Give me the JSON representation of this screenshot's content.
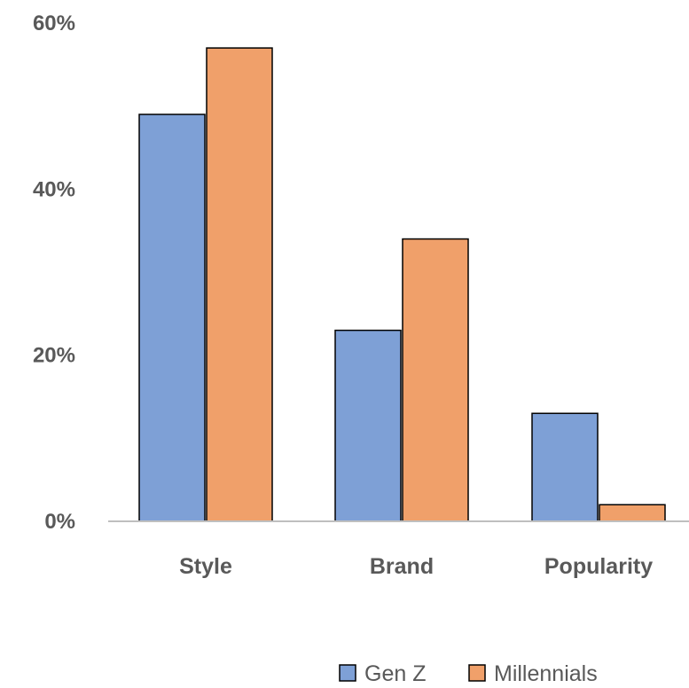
{
  "chart_data": {
    "type": "bar",
    "categories": [
      "Style",
      "Brand",
      "Popularity"
    ],
    "series": [
      {
        "name": "Gen Z",
        "values": [
          49,
          23,
          13
        ],
        "color": "#7EA0D6"
      },
      {
        "name": "Millennials",
        "values": [
          57,
          34,
          2
        ],
        "color": "#F0A06A"
      }
    ],
    "ylim": [
      0,
      60
    ],
    "y_ticks": [
      0,
      20,
      40,
      60
    ],
    "y_tick_labels": [
      "0%",
      "20%",
      "40%",
      "60%"
    ],
    "xlabel": "",
    "ylabel": "",
    "grid": false,
    "legend_position": "bottom",
    "axis_color": "#BFBFBF",
    "bar_outline_color": "#000000"
  }
}
